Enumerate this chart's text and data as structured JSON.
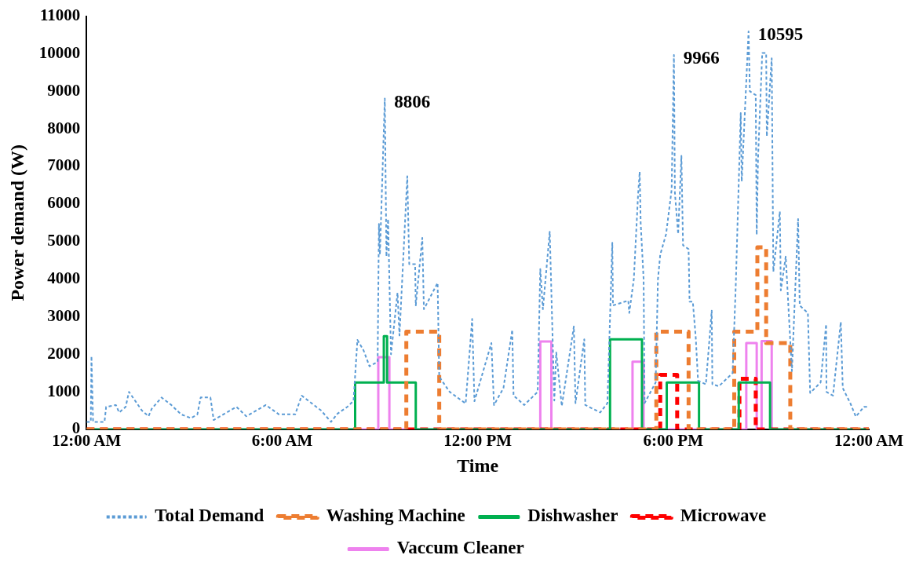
{
  "chart_data": {
    "type": "line",
    "xlabel": "Time",
    "ylabel": "Power demand (W)",
    "xlim": [
      0,
      24
    ],
    "xticks": [
      {
        "value": 0,
        "label": "12:00 AM"
      },
      {
        "value": 6,
        "label": "6:00 AM"
      },
      {
        "value": 12,
        "label": "12:00 PM"
      },
      {
        "value": 18,
        "label": "6:00 PM"
      },
      {
        "value": 24,
        "label": "12:00 AM"
      }
    ],
    "ylim": [
      0,
      11000
    ],
    "yticks": [
      0,
      1000,
      2000,
      3000,
      4000,
      5000,
      6000,
      7000,
      8000,
      9000,
      10000,
      11000
    ],
    "grid": false,
    "legend": "bottom",
    "marker": "none",
    "annotations": [
      {
        "text": "8806",
        "x": 9.15,
        "y": 8806
      },
      {
        "text": "9966",
        "x": 18.02,
        "y": 9966
      },
      {
        "text": "10595",
        "x": 20.31,
        "y": 10595
      }
    ],
    "series": [
      {
        "name": "Total Demand",
        "color": "#5b9bd5",
        "line_style": "dotted",
        "x": [
          0,
          0.13,
          0.15,
          0.2,
          0.55,
          0.6,
          0.9,
          1.0,
          1.2,
          1.3,
          1.5,
          1.7,
          1.9,
          2.0,
          2.3,
          2.6,
          2.9,
          3.2,
          3.4,
          3.5,
          3.8,
          3.9,
          4.3,
          4.6,
          4.9,
          5.2,
          5.5,
          5.9,
          6.4,
          6.6,
          6.9,
          7.2,
          7.5,
          7.7,
          8.0,
          8.19,
          8.31,
          8.5,
          8.68,
          8.93,
          8.97,
          9.0,
          9.15,
          9.2,
          9.25,
          9.34,
          9.54,
          9.6,
          9.84,
          9.9,
          10.08,
          10.1,
          10.3,
          10.35,
          10.77,
          10.82,
          11.14,
          11.63,
          11.83,
          11.9,
          12.42,
          12.5,
          12.79,
          13.06,
          13.1,
          13.43,
          13.84,
          13.92,
          14.0,
          14.21,
          14.35,
          14.41,
          14.58,
          14.95,
          15.0,
          15.27,
          15.3,
          15.76,
          15.98,
          16.13,
          16.15,
          16.62,
          16.65,
          16.79,
          16.92,
          16.97,
          17.0,
          17.09,
          17.12,
          17.46,
          17.53,
          17.6,
          17.78,
          17.95,
          18.02,
          18.05,
          18.15,
          18.25,
          18.3,
          18.47,
          18.5,
          18.6,
          18.69,
          18.76,
          19.0,
          19.18,
          19.2,
          19.4,
          19.82,
          19.92,
          20.07,
          20.1,
          20.31,
          20.35,
          20.53,
          20.56,
          20.6,
          20.73,
          20.85,
          20.87,
          21.02,
          21.07,
          21.27,
          21.3,
          21.45,
          21.5,
          21.64,
          21.83,
          21.88,
          22.13,
          22.2,
          22.52,
          22.69,
          22.7,
          22.9,
          23.14,
          23.2,
          23.43,
          23.6,
          23.85,
          24
        ],
        "values": [
          200,
          200,
          1950,
          200,
          200,
          600,
          650,
          450,
          600,
          1000,
          750,
          500,
          350,
          550,
          850,
          650,
          400,
          300,
          400,
          850,
          850,
          250,
          450,
          600,
          350,
          500,
          650,
          400,
          400,
          900,
          700,
          500,
          200,
          420,
          600,
          760,
          2380,
          2100,
          1680,
          1800,
          5470,
          4650,
          8806,
          4600,
          5600,
          2000,
          3640,
          2500,
          6740,
          4400,
          4400,
          3300,
          5100,
          3200,
          3900,
          1400,
          1000,
          690,
          2940,
          750,
          2300,
          650,
          1100,
          2650,
          900,
          650,
          1000,
          4270,
          3200,
          5260,
          770,
          2050,
          620,
          2740,
          700,
          2400,
          650,
          450,
          700,
          4970,
          3300,
          3430,
          3100,
          4000,
          6240,
          6860,
          5500,
          4000,
          700,
          1250,
          4000,
          4650,
          5200,
          6380,
          9966,
          6300,
          5200,
          7280,
          4900,
          4800,
          3400,
          3400,
          2440,
          1300,
          1200,
          3160,
          1200,
          1150,
          1500,
          3900,
          8420,
          6600,
          10595,
          9000,
          8900,
          5180,
          7200,
          10020,
          10020,
          7800,
          9880,
          4200,
          5800,
          3700,
          4600,
          3800,
          1550,
          5600,
          3300,
          3100,
          970,
          1250,
          2800,
          1000,
          900,
          2860,
          1100,
          700,
          340,
          600,
          600
        ]
      },
      {
        "name": "Washing Machine",
        "color": "#ed7d31",
        "line_style": "dashed",
        "x": [
          0,
          9.81,
          9.81,
          10.82,
          10.82,
          17.48,
          17.48,
          18.47,
          18.47,
          19.87,
          19.87,
          20.58,
          20.58,
          20.85,
          20.85,
          21.59,
          21.59,
          24
        ],
        "values": [
          0,
          0,
          2600,
          2600,
          0,
          0,
          2600,
          2600,
          0,
          0,
          2600,
          2600,
          4850,
          4850,
          2300,
          2300,
          0,
          0
        ]
      },
      {
        "name": "Dishwasher",
        "color": "#00b050",
        "line_style": "solid",
        "x": [
          0,
          8.24,
          8.24,
          9.12,
          9.12,
          9.22,
          9.22,
          10.1,
          10.1,
          16.06,
          16.06,
          17.04,
          17.04,
          17.8,
          17.8,
          18.79,
          18.79,
          20.01,
          20.01,
          20.97,
          20.97,
          24
        ],
        "values": [
          0,
          0,
          1250,
          1250,
          2480,
          2480,
          1250,
          1250,
          0,
          0,
          2400,
          2400,
          0,
          0,
          1250,
          1250,
          0,
          0,
          1250,
          1250,
          0,
          0
        ]
      },
      {
        "name": "Microwave",
        "color": "#ff0000",
        "line_style": "dashed",
        "x": [
          0,
          17.6,
          17.6,
          18.12,
          18.12,
          20.03,
          20.03,
          20.53,
          20.53,
          24
        ],
        "values": [
          0,
          0,
          1450,
          1450,
          0,
          0,
          1350,
          1350,
          0,
          0
        ]
      },
      {
        "name": "Vaccum Cleaner",
        "color": "#ee82ee",
        "line_style": "solid",
        "x": [
          0,
          8.95,
          8.95,
          9.29,
          9.29,
          13.92,
          13.92,
          14.26,
          14.26,
          16.75,
          16.75,
          17.09,
          17.09,
          20.24,
          20.24,
          20.56,
          20.56,
          20.71,
          20.71,
          21.02,
          21.02,
          24
        ],
        "values": [
          0,
          0,
          1920,
          1920,
          0,
          0,
          2340,
          2340,
          0,
          0,
          1800,
          1800,
          0,
          0,
          2300,
          2300,
          0,
          0,
          2350,
          2350,
          0,
          0
        ]
      }
    ]
  }
}
